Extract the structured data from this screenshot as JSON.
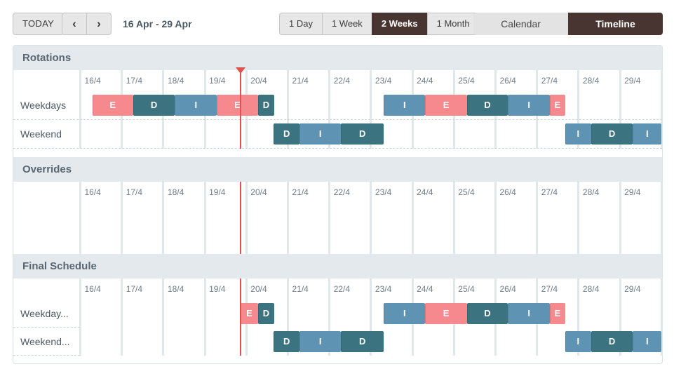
{
  "toolbar": {
    "today_label": "TODAY",
    "prev_icon": "‹",
    "next_icon": "›",
    "date_range": "16 Apr - 29 Apr",
    "view_options": [
      {
        "label": "1 Day",
        "selected": false
      },
      {
        "label": "1 Week",
        "selected": false
      },
      {
        "label": "2 Weeks",
        "selected": true
      },
      {
        "label": "1 Month",
        "selected": false
      }
    ],
    "mode_options": [
      {
        "label": "Calendar",
        "selected": false
      },
      {
        "label": "Timeline",
        "selected": true
      }
    ]
  },
  "timeline": {
    "dates": [
      "16/4",
      "17/4",
      "18/4",
      "19/4",
      "20/4",
      "21/4",
      "22/4",
      "23/4",
      "24/4",
      "25/4",
      "26/4",
      "27/4",
      "28/4",
      "29/4"
    ],
    "now_day": 3.86,
    "colors": {
      "E": "#f5898e",
      "D": "#3b7380",
      "I": "#5e93b3",
      "now": "#e2524c"
    },
    "sections": [
      {
        "id": "rotations",
        "title": "Rotations",
        "rows": [
          {
            "label": "Weekdays",
            "bars": [
              [
                0.29,
                1.27,
                "E"
              ],
              [
                1.27,
                2.28,
                "D"
              ],
              [
                2.28,
                3.29,
                "I"
              ],
              [
                3.29,
                4.28,
                "E"
              ],
              [
                4.28,
                4.67,
                "D"
              ],
              [
                7.31,
                8.31,
                "I"
              ],
              [
                8.31,
                9.31,
                "E"
              ],
              [
                9.31,
                10.3,
                "D"
              ],
              [
                10.3,
                11.31,
                "I"
              ],
              [
                11.31,
                11.68,
                "E"
              ]
            ]
          },
          {
            "label": "Weekend",
            "bars": [
              [
                4.66,
                5.28,
                "D"
              ],
              [
                5.28,
                6.28,
                "I"
              ],
              [
                6.28,
                7.31,
                "D"
              ],
              [
                11.68,
                12.3,
                "I"
              ],
              [
                12.3,
                13.31,
                "D"
              ],
              [
                13.31,
                14.0,
                "I"
              ]
            ]
          }
        ]
      },
      {
        "id": "overrides",
        "title": "Overrides",
        "rows": []
      },
      {
        "id": "final",
        "title": "Final Schedule",
        "rows": [
          {
            "label": "Weekday...",
            "bars": [
              [
                3.86,
                4.28,
                "E"
              ],
              [
                4.28,
                4.67,
                "D"
              ],
              [
                7.31,
                8.31,
                "I"
              ],
              [
                8.31,
                9.31,
                "E"
              ],
              [
                9.31,
                10.3,
                "D"
              ],
              [
                10.3,
                11.31,
                "I"
              ],
              [
                11.31,
                11.68,
                "E"
              ]
            ]
          },
          {
            "label": "Weekend...",
            "bars": [
              [
                4.66,
                5.28,
                "D"
              ],
              [
                5.28,
                6.28,
                "I"
              ],
              [
                6.28,
                7.31,
                "D"
              ],
              [
                11.68,
                12.3,
                "I"
              ],
              [
                12.3,
                13.31,
                "D"
              ],
              [
                13.31,
                14.0,
                "I"
              ]
            ]
          }
        ]
      }
    ]
  }
}
